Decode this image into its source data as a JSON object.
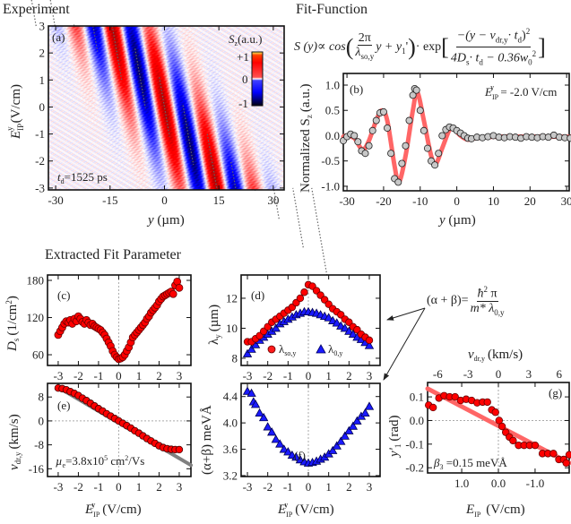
{
  "sections": {
    "experiment": "Experiment",
    "fit_function": "Fit-Function",
    "extracted": "Extracted Fit Parameter"
  },
  "formula_main": {
    "lhs": "S (y)∝ cos",
    "num1": "2π",
    "den1": "λ",
    "den1_sub": "so,y",
    "mid1": "y + y",
    "mid1_sub": "1",
    "mid1_end": "'",
    "dot_exp": "· exp",
    "num2": "−(y − v",
    "num2_sub": "dr,y",
    "num2_mid": "· t",
    "num2_sub2": "d",
    "num2_end": ")",
    "num2_sup": "2",
    "den2": "4D",
    "den2_sub": "s",
    "den2_mid": "· t",
    "den2_sub2": "d",
    "den2_end": " − 0.36w",
    "den2_sub3": "0",
    "den2_sup": "2"
  },
  "formula_ab": {
    "lhs": "(α + β)=",
    "num": "ħ",
    "num_sup": "2",
    "num_end": " π",
    "den": "m* λ",
    "den_sub": "0,y"
  },
  "colors": {
    "red": "#ff0000",
    "blue": "#1a1aff",
    "fit_red": "#ff6666",
    "gray_point": "#c8c8c8",
    "gray_line": "#808080"
  },
  "chart_data": [
    {
      "panel": "(a)",
      "type": "heatmap",
      "xlabel": {
        "main": "y",
        "unit": "(µm)"
      },
      "ylabel": {
        "main": "E",
        "sub": "IP",
        "sup": "y",
        "unit": "(V/cm)"
      },
      "xlim": [
        -32,
        33
      ],
      "ylim": [
        -3.07,
        3.0
      ],
      "xticks": [
        -30,
        -15,
        0,
        15,
        30
      ],
      "yticks": [
        3,
        2,
        1,
        0,
        -1,
        -2,
        -3
      ],
      "colorbar": {
        "title": "S",
        "title_sub": "z",
        "title_unit": "(a.u.)",
        "ticks": [
          "+1",
          "0",
          "-1"
        ],
        "range": [
          -1,
          1
        ]
      },
      "annotation": {
        "t": "t",
        "t_sub": "d",
        "value": "=1525 ps"
      }
    },
    {
      "panel": "(b)",
      "type": "scatter",
      "xlabel": {
        "main": "y",
        "unit": "(µm)"
      },
      "ylabel": {
        "pre": "Normalized S",
        "sub": "z",
        "unit": "(a.u.)"
      },
      "xlim": [
        -31,
        30.7
      ],
      "ylim": [
        -1.09,
        1.23
      ],
      "xticks": [
        -30,
        -20,
        -10,
        0,
        10,
        20,
        30
      ],
      "yticks": [
        "1.0",
        "0.5",
        "0.0",
        "-0.5",
        "-1.0"
      ],
      "annotation": {
        "e": "E",
        "e_sub": "IP",
        "e_sup": "y",
        "value": " = -2.0 V/cm"
      },
      "points": {
        "x": [
          -31,
          -30,
          -29,
          -28,
          -27,
          -26,
          -25,
          -24,
          -23,
          -22,
          -21,
          -20,
          -19,
          -18,
          -17,
          -16,
          -15,
          -14,
          -13,
          -12,
          -11.5,
          -11,
          -10,
          -9,
          -8,
          -7,
          -6,
          -5,
          -4,
          -3,
          -2,
          -1,
          0,
          1,
          2,
          3,
          4,
          5.5,
          7,
          8.5,
          10,
          11.5,
          13,
          14.5,
          16,
          17.5,
          19,
          20.5,
          22,
          23.5,
          25,
          26.5,
          28,
          29.5,
          31
        ],
        "y": [
          -0.1,
          -0.02,
          0.03,
          0.0,
          -0.12,
          -0.3,
          -0.35,
          -0.2,
          0.1,
          0.3,
          0.45,
          0.47,
          0.15,
          -0.35,
          -0.85,
          -0.92,
          -0.55,
          -0.2,
          0.3,
          0.8,
          0.93,
          0.9,
          0.5,
          0.1,
          -0.25,
          -0.5,
          -0.58,
          -0.35,
          0.0,
          0.12,
          0.17,
          0.15,
          0.1,
          0.05,
          0.0,
          -0.05,
          -0.06,
          -0.03,
          -0.04,
          -0.02,
          0.0,
          -0.03,
          -0.04,
          -0.02,
          -0.03,
          -0.05,
          -0.02,
          -0.03,
          -0.04,
          -0.02,
          -0.03,
          0.01,
          -0.03,
          -0.04,
          -0.05
        ]
      },
      "fit": {
        "x": [
          -31,
          -30,
          -28,
          -26.5,
          -25.5,
          -24,
          -22,
          -20.5,
          -19,
          -17,
          -15.8,
          -14,
          -12,
          -10.8,
          -9,
          -7,
          -5.7,
          -4,
          -2,
          -1,
          1,
          3,
          5,
          10,
          20,
          31
        ],
        "y": [
          -0.02,
          0.0,
          -0.05,
          -0.22,
          -0.28,
          -0.1,
          0.3,
          0.5,
          0.3,
          -0.6,
          -0.92,
          -0.4,
          0.5,
          0.86,
          0.3,
          -0.4,
          -0.55,
          -0.25,
          0.12,
          0.15,
          0.0,
          -0.08,
          -0.05,
          -0.02,
          -0.02,
          -0.02
        ]
      }
    },
    {
      "panel": "(c)",
      "type": "scatter",
      "xlim": [
        -3.53,
        3.58
      ],
      "ylim": [
        42.7,
        188.7
      ],
      "xticks": [
        -3,
        -2,
        -1,
        0,
        1,
        2,
        3
      ],
      "yticks": [
        180,
        120,
        60
      ],
      "ylabel": {
        "main": "D",
        "sub": "s",
        "unit": "(1/cm",
        "sup": "2",
        "end": ")"
      },
      "points": {
        "x": [
          -3,
          -2.9,
          -2.8,
          -2.7,
          -2.6,
          -2.5,
          -2.4,
          -2.3,
          -2.2,
          -2.1,
          -2,
          -1.9,
          -1.8,
          -1.7,
          -1.6,
          -1.5,
          -1.4,
          -1.3,
          -1.2,
          -1.1,
          -1,
          -0.9,
          -0.8,
          -0.7,
          -0.6,
          -0.5,
          -0.4,
          -0.3,
          -0.2,
          -0.1,
          0,
          0.1,
          0.2,
          0.3,
          0.4,
          0.5,
          0.6,
          0.7,
          0.8,
          0.9,
          1,
          1.1,
          1.2,
          1.3,
          1.4,
          1.5,
          1.6,
          1.7,
          1.8,
          1.9,
          2,
          2.1,
          2.2,
          2.3,
          2.4,
          2.5,
          2.6,
          2.7,
          2.8,
          2.9,
          3
        ],
        "y": [
          92,
          98,
          104,
          110,
          114,
          112,
          116,
          110,
          118,
          114,
          122,
          118,
          113,
          110,
          116,
          112,
          108,
          110,
          106,
          104,
          102,
          100,
          96,
          92,
          86,
          80,
          74,
          66,
          60,
          56,
          53,
          54,
          56,
          60,
          66,
          72,
          80,
          88,
          92,
          96,
          100,
          104,
          108,
          112,
          118,
          122,
          128,
          132,
          136,
          140,
          146,
          150,
          154,
          156,
          158,
          160,
          162,
          158,
          172,
          178,
          168
        ]
      }
    },
    {
      "panel": "(d)",
      "type": "scatter",
      "xlim": [
        -3.31,
        3.53
      ],
      "ylim": [
        7.52,
        13.55
      ],
      "xticks": [
        -3,
        -2,
        -1,
        0,
        1,
        2,
        3
      ],
      "yticks": [
        12,
        10,
        8
      ],
      "ylabel": {
        "main": "λ",
        "sub": "y",
        "unit": "(µm)"
      },
      "series": [
        {
          "name": "λ",
          "name_sub": "so,y",
          "marker": "circle",
          "x": [
            -3,
            -2.8,
            -2.6,
            -2.4,
            -2.2,
            -2,
            -1.8,
            -1.6,
            -1.4,
            -1.2,
            -1,
            -0.8,
            -0.6,
            -0.4,
            -0.2,
            0,
            0.2,
            0.4,
            0.6,
            0.8,
            1,
            1.2,
            1.4,
            1.6,
            1.8,
            2,
            2.2,
            2.4,
            2.6,
            2.8,
            3
          ],
          "y": [
            9.1,
            9.1,
            9.3,
            9.5,
            9.8,
            10.1,
            10.4,
            10.6,
            10.8,
            11.0,
            11.2,
            11.4,
            11.7,
            12.0,
            12.4,
            12.9,
            12.8,
            12.5,
            12.2,
            11.9,
            11.6,
            11.3,
            11.1,
            10.9,
            10.6,
            10.4,
            10.1,
            9.9,
            9.6,
            9.4,
            9.2
          ]
        },
        {
          "name": "λ",
          "name_sub": "0,y",
          "marker": "triangle",
          "x": [
            -3,
            -2.8,
            -2.6,
            -2.4,
            -2.2,
            -2,
            -1.8,
            -1.6,
            -1.4,
            -1.2,
            -1,
            -0.8,
            -0.6,
            -0.4,
            -0.2,
            0,
            0.2,
            0.4,
            0.6,
            0.8,
            1,
            1.2,
            1.4,
            1.6,
            1.8,
            2,
            2.2,
            2.4,
            2.6,
            2.8,
            3
          ],
          "y": [
            8.3,
            8.6,
            8.9,
            9.2,
            9.4,
            9.6,
            9.8,
            10.0,
            10.3,
            10.45,
            10.6,
            10.75,
            10.9,
            11.0,
            11.1,
            11.1,
            11.05,
            11.0,
            10.9,
            10.8,
            10.7,
            10.5,
            10.35,
            10.15,
            10.0,
            9.8,
            9.6,
            9.4,
            9.25,
            9.05,
            8.85
          ]
        }
      ]
    },
    {
      "panel": "(e)",
      "type": "scatter",
      "xlim": [
        -3.53,
        3.58
      ],
      "ylim": [
        -18.6,
        12.56
      ],
      "xticks": [
        -3,
        -2,
        -1,
        0,
        1,
        2,
        3
      ],
      "yticks": [
        8,
        0,
        -8,
        -16
      ],
      "ylabel": {
        "main": "v",
        "sub": "dr,y",
        "unit": "(km/s)"
      },
      "xlabel": {
        "main": "E",
        "sub": "IP",
        "sup": "y",
        "unit": "(V/cm)"
      },
      "annotation": {
        "mu": "µ",
        "mu_sub": "e",
        "value": "=3.8x10",
        "exp": "5",
        "unit": " cm",
        "unit_sup": "2",
        "unit_end": "/Vs"
      },
      "points": {
        "x": [
          -3,
          -2.8,
          -2.6,
          -2.4,
          -2.2,
          -2,
          -1.8,
          -1.6,
          -1.4,
          -1.2,
          -1,
          -0.8,
          -0.6,
          -0.4,
          -0.2,
          0,
          0.2,
          0.4,
          0.6,
          0.8,
          1,
          1.2,
          1.4,
          1.6,
          1.8,
          2,
          2.2,
          2.4,
          2.6,
          2.8,
          3
        ],
        "y": [
          11,
          10.8,
          10.4,
          9.8,
          9.2,
          8.5,
          7.6,
          6.8,
          5.9,
          5.0,
          4.1,
          3.3,
          2.4,
          1.6,
          0.8,
          0,
          -0.8,
          -1.6,
          -2.4,
          -3.3,
          -4.1,
          -5.0,
          -5.9,
          -6.7,
          -7.5,
          -8.3,
          -8.9,
          -9.3,
          -9.5,
          -9.6,
          -9.6
        ]
      },
      "fit_line": {
        "x": [
          -3.0,
          3.58
        ],
        "y": [
          11.2,
          -14.8
        ]
      }
    },
    {
      "panel": "(f)",
      "type": "scatter",
      "xlim": [
        -3.31,
        3.53
      ],
      "ylim": [
        3.186,
        4.6
      ],
      "xticks": [
        -3,
        -2,
        -1,
        0,
        1,
        2,
        3
      ],
      "yticks": [
        "4.4",
        "4.0",
        "3.6",
        "3.2"
      ],
      "ylabel": {
        "main": "(α+β) meVÅ"
      },
      "xlabel": {
        "main": "E",
        "sub": "IP",
        "sup": "y",
        "unit": "(V/cm)"
      },
      "points": {
        "x": [
          -3,
          -2.8,
          -2.7,
          -2.6,
          -2.4,
          -2.2,
          -2,
          -1.8,
          -1.6,
          -1.4,
          -1.2,
          -1,
          -0.8,
          -0.6,
          -0.4,
          -0.2,
          0,
          0.2,
          0.4,
          0.6,
          0.8,
          1,
          1.2,
          1.4,
          1.6,
          1.8,
          2,
          2.2,
          2.4,
          2.6,
          2.8,
          3
        ],
        "y": [
          4.48,
          4.45,
          4.32,
          4.28,
          4.15,
          4.08,
          3.94,
          3.86,
          3.75,
          3.68,
          3.6,
          3.56,
          3.51,
          3.48,
          3.44,
          3.41,
          3.39,
          3.4,
          3.42,
          3.45,
          3.48,
          3.53,
          3.58,
          3.65,
          3.72,
          3.8,
          3.88,
          3.95,
          4.03,
          4.1,
          4.15,
          4.25
        ]
      }
    },
    {
      "panel": "(g)",
      "type": "scatter",
      "xlim": [
        1.93,
        -1.93
      ],
      "ylim": [
        -0.222,
        0.161
      ],
      "xticks": [
        "1.0",
        "0.0",
        "-1.0"
      ],
      "yticks": [
        "0.1",
        "0.0",
        "-0.1",
        "-0.2"
      ],
      "top_xlim": [
        -7.0,
        7.0
      ],
      "top_xticks": [
        -6,
        -3,
        0,
        3,
        6
      ],
      "top_xlabel": {
        "main": "v",
        "sub": "dr,y",
        "unit": "(km/s)"
      },
      "ylabel": {
        "main": "y'",
        "sub": "1",
        "unit": "(rad)"
      },
      "xlabel": {
        "main": "E",
        "sub": "IP",
        "unit": "(V/cm)"
      },
      "annotation": {
        "b": "β",
        "b_sub": "3",
        "value": " =0.15 meVÅ"
      },
      "points": {
        "x": [
          1.9,
          1.78,
          1.62,
          1.48,
          1.33,
          1.18,
          1.03,
          0.88,
          0.73,
          0.58,
          0.43,
          0.3,
          0.18,
          0.08,
          -0.02,
          -0.1,
          -0.2,
          -0.3,
          -0.4,
          -0.55,
          -0.7,
          -0.85,
          -1.0,
          -1.2,
          -1.35,
          -1.5,
          -1.65,
          -1.78,
          -1.85,
          -1.93
        ],
        "y": [
          0.065,
          0.055,
          0.095,
          0.105,
          0.1,
          0.1,
          0.085,
          0.09,
          0.085,
          0.075,
          0.078,
          0.078,
          0.045,
          0.035,
          0.0,
          -0.025,
          -0.05,
          -0.07,
          -0.085,
          -0.105,
          -0.105,
          -0.105,
          -0.105,
          -0.14,
          -0.14,
          -0.14,
          -0.165,
          -0.165,
          -0.18,
          -0.145
        ]
      },
      "fit_line": {
        "x": [
          1.93,
          -1.93
        ],
        "y": [
          0.135,
          -0.18
        ]
      }
    }
  ]
}
